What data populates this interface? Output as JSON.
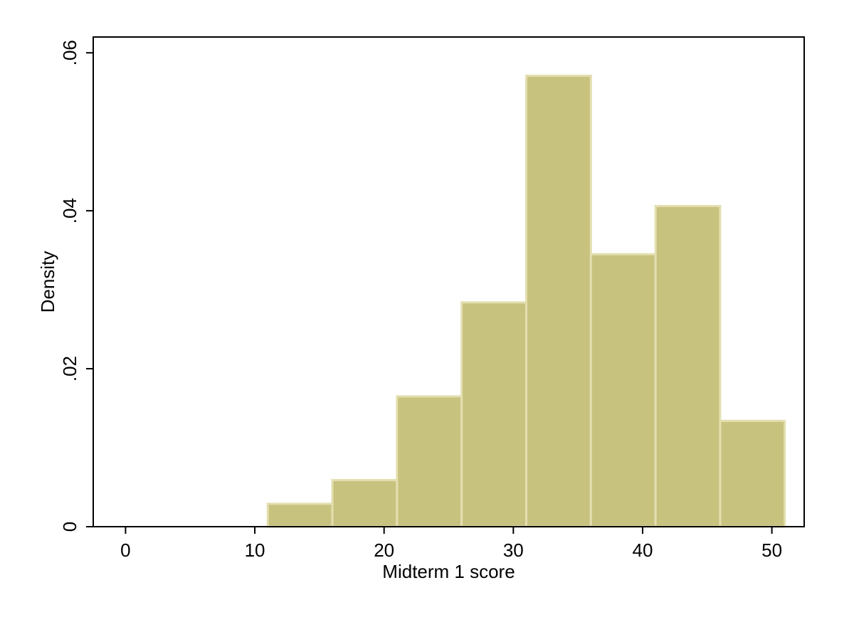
{
  "chart_data": {
    "type": "bar",
    "subtype": "histogram",
    "title": "",
    "xlabel": "Midterm 1 score",
    "ylabel": "Density",
    "xlim": [
      -2.5,
      52.5
    ],
    "ylim": [
      0,
      0.062
    ],
    "xticks": [
      0,
      10,
      20,
      30,
      40,
      50
    ],
    "xtick_labels": [
      "0",
      "10",
      "20",
      "30",
      "40",
      "50"
    ],
    "yticks": [
      0,
      0.02,
      0.04,
      0.06
    ],
    "ytick_labels": [
      "0",
      ".02",
      ".04",
      ".06"
    ],
    "grid": false,
    "legend": "none",
    "bar_color": "#c8c27f",
    "bar_edge_color": "#e3dfb0",
    "bins": [
      {
        "x0": 0,
        "x1": 11,
        "value": 0
      },
      {
        "x0": 11,
        "x1": 16,
        "value": 0.0029
      },
      {
        "x0": 16,
        "x1": 21,
        "value": 0.0059
      },
      {
        "x0": 21,
        "x1": 26,
        "value": 0.0165
      },
      {
        "x0": 26,
        "x1": 31,
        "value": 0.0284
      },
      {
        "x0": 31,
        "x1": 36,
        "value": 0.0571
      },
      {
        "x0": 36,
        "x1": 41,
        "value": 0.0345
      },
      {
        "x0": 41,
        "x1": 46,
        "value": 0.0406
      },
      {
        "x0": 46,
        "x1": 51,
        "value": 0.0134
      }
    ]
  }
}
